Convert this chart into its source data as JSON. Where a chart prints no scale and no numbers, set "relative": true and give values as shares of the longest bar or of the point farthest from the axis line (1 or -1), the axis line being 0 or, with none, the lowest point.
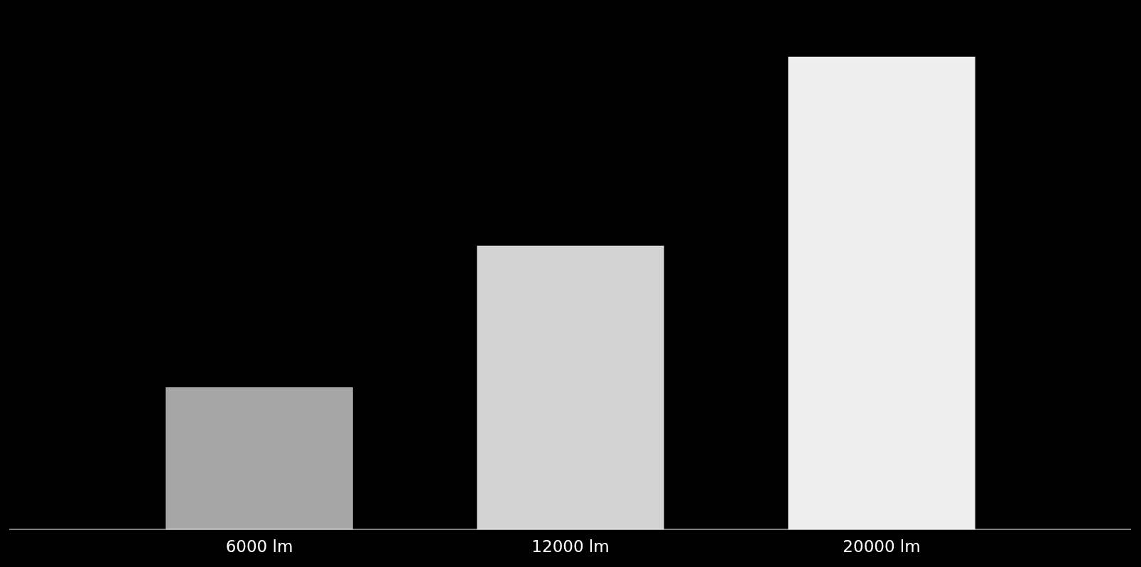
{
  "chart_data": {
    "type": "bar",
    "relative": true,
    "categories": [
      "6000 lm",
      "12000 lm",
      "20000 lm"
    ],
    "values": [
      0.3,
      0.6,
      1
    ],
    "colors": [
      "#a6a6a6",
      "#d3d3d3",
      "#eeeeee"
    ]
  }
}
